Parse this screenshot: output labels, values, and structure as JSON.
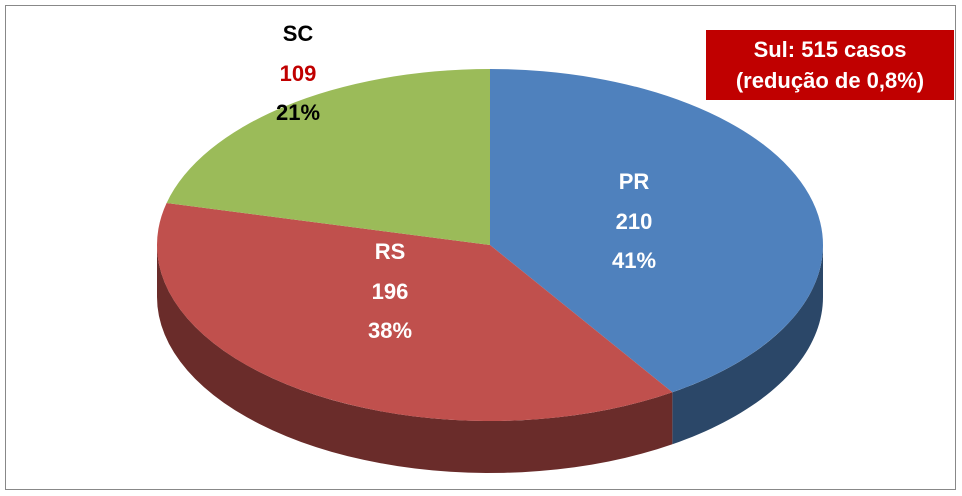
{
  "chart_data": {
    "type": "pie3d",
    "categories": [
      "PR",
      "RS",
      "SC"
    ],
    "values": [
      210,
      196,
      109
    ],
    "percent_labels": [
      "41%",
      "38%",
      "21%"
    ],
    "colors": [
      "#4f81bd",
      "#c0504d",
      "#9bbb59"
    ],
    "annotation": [
      "Sul: 515 casos",
      "(redução de 0,8%)"
    ]
  }
}
